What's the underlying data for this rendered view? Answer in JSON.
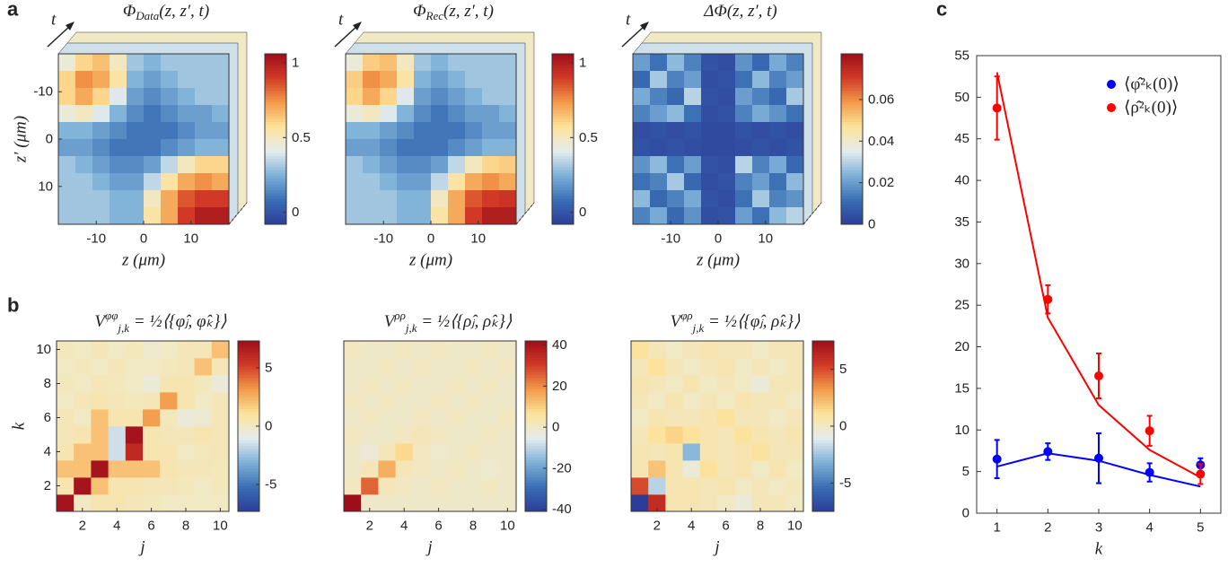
{
  "panel_labels": [
    "a",
    "b",
    "c"
  ],
  "colormap": [
    "#2c3d99",
    "#3a6fb5",
    "#7fb2d8",
    "#e4ecee",
    "#fde39a",
    "#f39a4a",
    "#d23a26",
    "#9e0e1a"
  ],
  "chart_data": [
    {
      "type": "heatmap",
      "title": {
        "symbol": "Φ",
        "subscript": "Data",
        "args": "(z, z′, t)"
      },
      "time_label": "t",
      "xlabel": "z (μm)",
      "ylabel": "z′ (μm)",
      "y_reverse": true,
      "xlim": [
        -18,
        18
      ],
      "ylim": [
        -18,
        18
      ],
      "xticks": [
        -10,
        0,
        10
      ],
      "yticks": [
        -10,
        0,
        10
      ],
      "clim": [
        -0.08,
        1.06
      ],
      "cticks": [
        0,
        0.5,
        1
      ],
      "values": [
        [
          0.45,
          0.6,
          0.65,
          0.5,
          0.3,
          0.25,
          0.3,
          0.3,
          0.3,
          0.3
        ],
        [
          0.6,
          0.75,
          0.7,
          0.55,
          0.25,
          0.2,
          0.25,
          0.3,
          0.3,
          0.3
        ],
        [
          0.6,
          0.7,
          0.6,
          0.4,
          0.2,
          0.15,
          0.2,
          0.25,
          0.3,
          0.3
        ],
        [
          0.45,
          0.5,
          0.4,
          0.25,
          0.15,
          0.1,
          0.15,
          0.2,
          0.2,
          0.25
        ],
        [
          0.25,
          0.25,
          0.2,
          0.15,
          0.1,
          0.1,
          0.1,
          0.15,
          0.2,
          0.2
        ],
        [
          0.2,
          0.2,
          0.15,
          0.1,
          0.1,
          0.1,
          0.15,
          0.2,
          0.25,
          0.25
        ],
        [
          0.3,
          0.25,
          0.2,
          0.15,
          0.15,
          0.2,
          0.35,
          0.5,
          0.6,
          0.6
        ],
        [
          0.3,
          0.3,
          0.25,
          0.2,
          0.2,
          0.35,
          0.55,
          0.7,
          0.75,
          0.7
        ],
        [
          0.3,
          0.3,
          0.3,
          0.25,
          0.25,
          0.5,
          0.7,
          0.85,
          0.9,
          0.9
        ],
        [
          0.3,
          0.3,
          0.3,
          0.25,
          0.25,
          0.55,
          0.7,
          0.9,
          1,
          1
        ]
      ]
    },
    {
      "type": "heatmap",
      "title": {
        "symbol": "Φ",
        "subscript": "Rec",
        "args": "(z, z′, t)"
      },
      "time_label": "t",
      "xlabel": "z (μm)",
      "y_reverse": true,
      "xlim": [
        -18,
        18
      ],
      "ylim": [
        -18,
        18
      ],
      "xticks": [
        -10,
        0,
        10
      ],
      "clim": [
        -0.08,
        1.06
      ],
      "cticks": [
        0,
        0.5,
        1
      ],
      "values": [
        [
          0.45,
          0.62,
          0.65,
          0.5,
          0.3,
          0.25,
          0.3,
          0.3,
          0.3,
          0.3
        ],
        [
          0.62,
          0.75,
          0.7,
          0.55,
          0.25,
          0.2,
          0.25,
          0.3,
          0.3,
          0.3
        ],
        [
          0.6,
          0.7,
          0.6,
          0.4,
          0.2,
          0.15,
          0.2,
          0.25,
          0.3,
          0.3
        ],
        [
          0.45,
          0.5,
          0.4,
          0.25,
          0.15,
          0.1,
          0.15,
          0.2,
          0.2,
          0.25
        ],
        [
          0.25,
          0.25,
          0.2,
          0.15,
          0.1,
          0.1,
          0.1,
          0.15,
          0.2,
          0.2
        ],
        [
          0.2,
          0.2,
          0.15,
          0.1,
          0.1,
          0.1,
          0.15,
          0.2,
          0.25,
          0.25
        ],
        [
          0.3,
          0.25,
          0.2,
          0.15,
          0.15,
          0.2,
          0.35,
          0.5,
          0.6,
          0.62
        ],
        [
          0.3,
          0.3,
          0.25,
          0.2,
          0.2,
          0.35,
          0.55,
          0.7,
          0.75,
          0.7
        ],
        [
          0.3,
          0.3,
          0.3,
          0.25,
          0.25,
          0.5,
          0.7,
          0.85,
          0.9,
          0.92
        ],
        [
          0.3,
          0.3,
          0.3,
          0.25,
          0.25,
          0.55,
          0.7,
          0.9,
          1,
          1
        ]
      ]
    },
    {
      "type": "heatmap",
      "title": {
        "symbol": "ΔΦ",
        "args": "(z, z′, t)"
      },
      "time_label": "t",
      "xlabel": "z (μm)",
      "y_reverse": true,
      "xlim": [
        -18,
        18
      ],
      "ylim": [
        -18,
        18
      ],
      "xticks": [
        -10,
        0,
        10
      ],
      "clim": [
        0,
        0.082
      ],
      "cticks": [
        0,
        0.02,
        0.04,
        0.06
      ],
      "values": [
        [
          0.02,
          0.012,
          0.025,
          0.015,
          0.005,
          0.004,
          0.018,
          0.01,
          0.022,
          0.015
        ],
        [
          0.01,
          0.028,
          0.015,
          0.02,
          0.004,
          0.005,
          0.012,
          0.025,
          0.015,
          0.02
        ],
        [
          0.022,
          0.015,
          0.01,
          0.03,
          0.005,
          0.004,
          0.02,
          0.015,
          0.01,
          0.028
        ],
        [
          0.015,
          0.02,
          0.025,
          0.012,
          0.004,
          0.005,
          0.015,
          0.022,
          0.018,
          0.012
        ],
        [
          0.004,
          0.005,
          0.004,
          0.005,
          0.003,
          0.003,
          0.005,
          0.004,
          0.005,
          0.004
        ],
        [
          0.005,
          0.004,
          0.005,
          0.004,
          0.003,
          0.003,
          0.004,
          0.005,
          0.004,
          0.005
        ],
        [
          0.018,
          0.025,
          0.012,
          0.02,
          0.005,
          0.004,
          0.03,
          0.015,
          0.022,
          0.01
        ],
        [
          0.012,
          0.015,
          0.028,
          0.01,
          0.004,
          0.005,
          0.015,
          0.02,
          0.012,
          0.025
        ],
        [
          0.025,
          0.01,
          0.015,
          0.022,
          0.005,
          0.004,
          0.012,
          0.028,
          0.015,
          0.018
        ],
        [
          0.015,
          0.022,
          0.01,
          0.018,
          0.004,
          0.005,
          0.02,
          0.012,
          0.025,
          0.03
        ]
      ]
    },
    {
      "type": "heatmap",
      "title": {
        "symbol": "V",
        "superscript": "φφ",
        "subscript": "j,k",
        "args": " = ½⟨{φ̂ⱼ, φ̂ₖ}⟩"
      },
      "xlabel": "j",
      "ylabel": "k",
      "xlim": [
        0.5,
        10.5
      ],
      "ylim": [
        0.5,
        10.5
      ],
      "xticks": [
        2,
        4,
        6,
        8,
        10
      ],
      "yticks": [
        2,
        4,
        6,
        8,
        10
      ],
      "clim": [
        -7.3,
        7.3
      ],
      "cticks": [
        -5,
        0,
        5
      ],
      "values": [
        [
          7,
          0,
          0.5,
          0.5,
          0.3,
          0.2,
          0,
          0,
          0,
          0
        ],
        [
          0.5,
          7,
          2,
          0.5,
          0.5,
          0.3,
          0.3,
          0.2,
          0,
          0.2
        ],
        [
          2,
          2,
          7,
          2,
          2,
          2,
          0.5,
          0.3,
          0.3,
          0.2
        ],
        [
          0.5,
          2,
          2,
          -1.5,
          6,
          0.5,
          0.5,
          0,
          0.2,
          0.3
        ],
        [
          0.3,
          0.5,
          2,
          -1.5,
          7,
          0.5,
          0.3,
          0.3,
          0.5,
          0.3
        ],
        [
          0.3,
          0,
          2,
          0.5,
          0.5,
          3,
          0.2,
          -0.5,
          -0.3,
          0.3
        ],
        [
          0,
          0.3,
          0.5,
          0.3,
          0.2,
          0.3,
          3,
          0.5,
          0,
          0.3
        ],
        [
          0.2,
          0,
          0.3,
          0.2,
          0,
          -0.5,
          0.5,
          0.5,
          0.2,
          -0.5
        ],
        [
          0,
          0.2,
          0,
          0.3,
          0,
          0,
          0.2,
          0.3,
          2,
          0.3
        ],
        [
          0.2,
          0,
          0.3,
          0,
          0.2,
          -0.3,
          0,
          0.3,
          0.3,
          2
        ]
      ]
    },
    {
      "type": "heatmap",
      "title": {
        "symbol": "V",
        "superscript": "ρρ",
        "subscript": "j,k",
        "args": " = ½⟨{ρ̂ⱼ, ρ̂ₖ}⟩"
      },
      "xlabel": "j",
      "xlim": [
        0.5,
        10.5
      ],
      "ylim": [
        0.5,
        10.5
      ],
      "xticks": [
        2,
        4,
        6,
        8,
        10
      ],
      "clim": [
        -41,
        42
      ],
      "cticks": [
        -40,
        -20,
        0,
        20,
        40
      ],
      "values": [
        [
          45,
          0,
          0,
          0,
          0,
          0,
          0,
          0,
          0,
          0
        ],
        [
          1,
          25,
          2,
          1,
          0,
          1,
          0,
          0,
          1,
          0
        ],
        [
          0,
          2,
          15,
          2,
          1,
          0,
          1,
          0,
          -1,
          0
        ],
        [
          0,
          -2,
          2,
          8,
          1,
          -1,
          0,
          1,
          0,
          0
        ],
        [
          1,
          0,
          0,
          1,
          2,
          1,
          0,
          0,
          1,
          0
        ],
        [
          0,
          1,
          0,
          0,
          1,
          0,
          1,
          0,
          0,
          1
        ],
        [
          1,
          0,
          1,
          0,
          0,
          1,
          0,
          1,
          0,
          0
        ],
        [
          0,
          1,
          0,
          1,
          0,
          0,
          1,
          0,
          1,
          0
        ],
        [
          0,
          0,
          1,
          0,
          1,
          0,
          0,
          1,
          0,
          1
        ],
        [
          1,
          0,
          0,
          1,
          0,
          1,
          0,
          0,
          1,
          0
        ]
      ]
    },
    {
      "type": "heatmap",
      "title": {
        "symbol": "V",
        "superscript": "φρ",
        "subscript": "j,k",
        "args": " = ½⟨{φ̂ⱼ, ρ̂ₖ}⟩"
      },
      "xlabel": "j",
      "xlim": [
        0.5,
        10.5
      ],
      "ylim": [
        0.5,
        10.5
      ],
      "xticks": [
        2,
        4,
        6,
        8,
        10
      ],
      "clim": [
        -7.5,
        7.5
      ],
      "cticks": [
        -5,
        0,
        5
      ],
      "values": [
        [
          -8,
          6,
          0.5,
          0.5,
          0.3,
          0,
          -0.5,
          0.3,
          0.3,
          0
        ],
        [
          5,
          -2,
          0.5,
          0.5,
          0.3,
          0.5,
          0,
          0.3,
          0,
          0.2
        ],
        [
          0.5,
          2,
          0.5,
          -0.5,
          1,
          0.3,
          0.5,
          0,
          0.5,
          0
        ],
        [
          0.5,
          0.3,
          0.5,
          -3,
          0.5,
          0.3,
          0.5,
          1,
          0.3,
          0.3
        ],
        [
          0.3,
          1,
          1.5,
          1,
          0.5,
          0.3,
          1,
          0.5,
          0.3,
          0.5
        ],
        [
          0,
          0.5,
          0.3,
          0.3,
          0.5,
          1,
          0.3,
          0.3,
          0,
          0.3
        ],
        [
          0.3,
          0,
          0.5,
          0,
          0.3,
          0,
          0.5,
          0.3,
          0.3,
          0
        ],
        [
          0.5,
          0.3,
          0,
          0.5,
          0,
          0.3,
          0,
          -0.5,
          0.3,
          0.3
        ],
        [
          0.3,
          1,
          0.3,
          0,
          0.3,
          0.5,
          0,
          0.3,
          0,
          0.3
        ],
        [
          1,
          0.3,
          0,
          0.3,
          0.5,
          0.3,
          0.3,
          0,
          0.3,
          0.3
        ]
      ]
    },
    {
      "type": "line",
      "xlabel": "k",
      "x": [
        1,
        2,
        3,
        4,
        5
      ],
      "xlim": [
        0.6,
        5.4
      ],
      "ylim": [
        0,
        55
      ],
      "xticks": [
        1,
        2,
        3,
        4,
        5
      ],
      "yticks": [
        0,
        5,
        10,
        15,
        20,
        25,
        30,
        35,
        40,
        45,
        50,
        55
      ],
      "legend": "upper right",
      "series": [
        {
          "name": "⟨φ̂²ₖ(0)⟩",
          "color": "#0000ff",
          "values": [
            6.5,
            7.4,
            6.6,
            4.9,
            5.8
          ],
          "errors": [
            2.3,
            1.0,
            3.0,
            1.1,
            0.8
          ],
          "fit_values": [
            5.6,
            7.2,
            6.3,
            4.6,
            3.2
          ]
        },
        {
          "name": "⟨ρ̂²ₖ(0)⟩",
          "color": "#ff0000",
          "values": [
            48.7,
            25.7,
            16.5,
            9.9,
            4.7
          ],
          "errors": [
            3.8,
            1.7,
            2.7,
            1.8,
            1.2
          ],
          "fit_values": [
            53,
            23.5,
            13,
            7.6,
            4.3
          ]
        }
      ]
    }
  ]
}
